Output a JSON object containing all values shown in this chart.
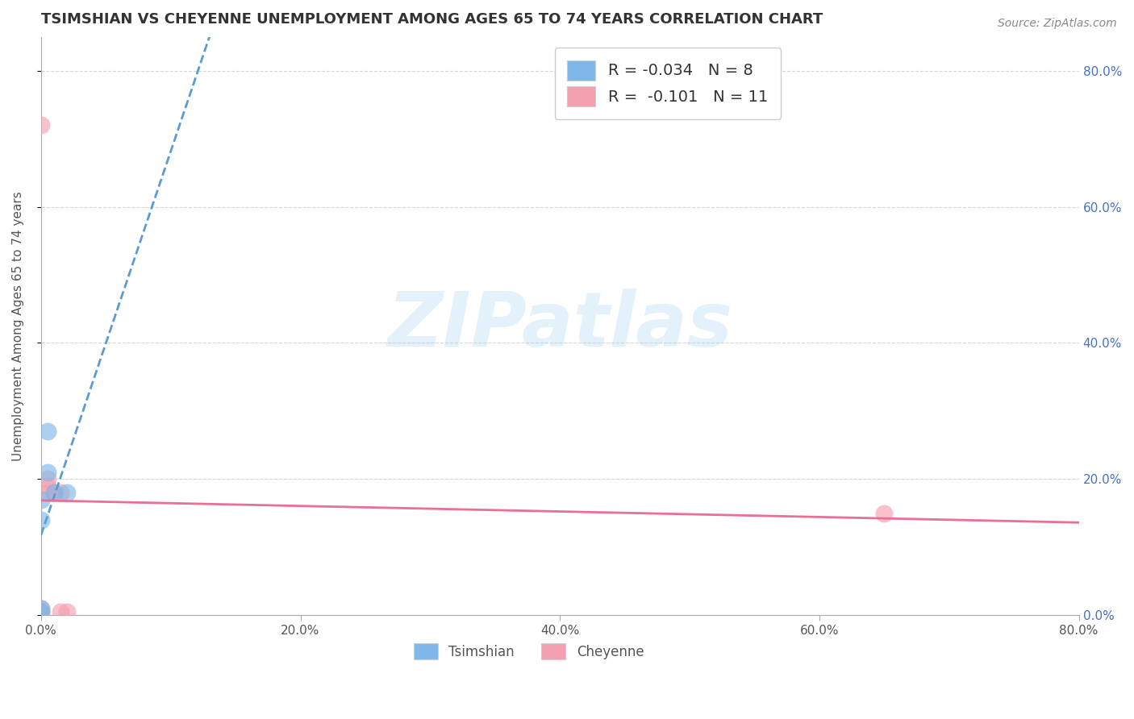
{
  "title": "TSIMSHIAN VS CHEYENNE UNEMPLOYMENT AMONG AGES 65 TO 74 YEARS CORRELATION CHART",
  "source": "Source: ZipAtlas.com",
  "ylabel": "Unemployment Among Ages 65 to 74 years",
  "xlim": [
    0.0,
    0.8
  ],
  "ylim": [
    0.0,
    0.85
  ],
  "tsimshian_x": [
    0.0,
    0.0,
    0.0,
    0.0,
    0.005,
    0.005,
    0.01,
    0.02
  ],
  "tsimshian_y": [
    0.005,
    0.01,
    0.14,
    0.17,
    0.21,
    0.27,
    0.18,
    0.18
  ],
  "cheyenne_x": [
    0.0,
    0.0,
    0.0,
    0.005,
    0.005,
    0.005,
    0.01,
    0.015,
    0.015,
    0.02,
    0.65
  ],
  "cheyenne_y": [
    0.005,
    0.01,
    0.72,
    0.18,
    0.19,
    0.2,
    0.18,
    0.005,
    0.18,
    0.005,
    0.15
  ],
  "tsimshian_R": -0.034,
  "tsimshian_N": 8,
  "cheyenne_R": -0.101,
  "cheyenne_N": 11,
  "tsimshian_color": "#7eb8e8",
  "cheyenne_color": "#f5a0b0",
  "tsimshian_line_color": "#5b9bd5",
  "cheyenne_line_color": "#e87090",
  "watermark_color": "#d0e8f8",
  "background_color": "#ffffff",
  "grid_color": "#cccccc",
  "right_axis_color": "#4472c4",
  "legend_r_color": "#e06080",
  "legend_n_color": "#4472c4"
}
